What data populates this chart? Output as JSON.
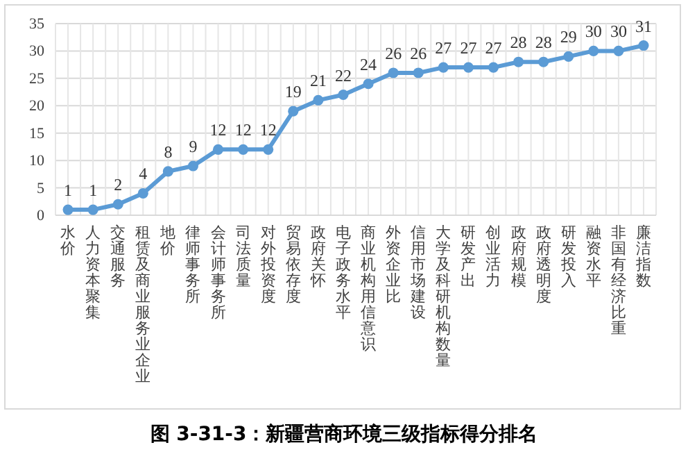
{
  "chart_data": {
    "type": "line",
    "title": "图 3-31-3：新疆营商环境三级指标得分排名",
    "categories": [
      "水价",
      "人力资本聚集",
      "交通服务",
      "租赁及商业服务业企业",
      "地价",
      "律师事务所",
      "会计师事务所",
      "司法质量",
      "对外投资度",
      "贸易依存度",
      "政府关怀",
      "电子政务水平",
      "商业机构用信意识",
      "外资企业比",
      "信用市场建设",
      "大学及科研机构数量",
      "研发产出",
      "创业活力",
      "政府规模",
      "政府透明度",
      "研发投入",
      "融资水平",
      "非国有经济比重",
      "廉洁指数"
    ],
    "series": [
      {
        "color": "#5b9bd5",
        "values": [
          1,
          1,
          2,
          4,
          8,
          9,
          12,
          12,
          12,
          19,
          21,
          22,
          24,
          26,
          26,
          27,
          27,
          27,
          28,
          28,
          29,
          30,
          30,
          31
        ]
      }
    ],
    "ylim": [
      0,
      35
    ],
    "yticks": [
      0,
      5,
      10,
      15,
      20,
      25,
      30,
      35
    ],
    "grid": true,
    "data_labels": true,
    "marker": "circle",
    "line_style": "solid"
  }
}
